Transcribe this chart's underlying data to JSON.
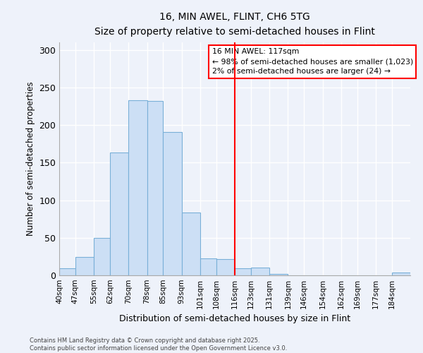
{
  "title": "16, MIN AWEL, FLINT, CH6 5TG",
  "subtitle": "Size of property relative to semi-detached houses in Flint",
  "xlabel": "Distribution of semi-detached houses by size in Flint",
  "ylabel": "Number of semi-detached properties",
  "bar_color": "#ccdff5",
  "bar_edge_color": "#7ab0d8",
  "background_color": "#eef2fa",
  "grid_color": "#ffffff",
  "vline_x": 116,
  "vline_color": "red",
  "annotation_line1": "16 MIN AWEL: 117sqm",
  "annotation_line2": "← 98% of semi-detached houses are smaller (1,023)",
  "annotation_line3": "2% of semi-detached houses are larger (24) →",
  "bins": [
    40,
    47,
    55,
    62,
    70,
    78,
    85,
    93,
    101,
    108,
    116,
    123,
    131,
    139,
    146,
    154,
    162,
    169,
    177,
    184,
    192
  ],
  "counts": [
    9,
    24,
    50,
    163,
    233,
    232,
    191,
    84,
    23,
    22,
    9,
    10,
    2,
    0,
    0,
    0,
    0,
    0,
    0,
    4
  ],
  "ylim": [
    0,
    310
  ],
  "yticks": [
    0,
    50,
    100,
    150,
    200,
    250,
    300
  ],
  "footnote1": "Contains HM Land Registry data © Crown copyright and database right 2025.",
  "footnote2": "Contains public sector information licensed under the Open Government Licence v3.0."
}
